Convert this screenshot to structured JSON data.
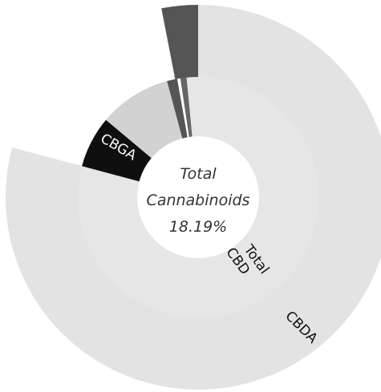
{
  "chart_data": {
    "type": "pie",
    "title": "",
    "center_label": {
      "line1": "Total",
      "line2": "Cannabinoids",
      "line3": "18.19%"
    },
    "inner_ring": [
      {
        "label": "Total CBD",
        "value": 285,
        "color": "#e6e6e6"
      },
      {
        "label": "CBGA",
        "value": 25,
        "color": "#0f0f0f"
      },
      {
        "label": "",
        "value": 35,
        "color": "#d2d2d2"
      },
      {
        "label": "",
        "value": 5,
        "color": "#555555"
      },
      {
        "label": "",
        "value": 1.5,
        "color": "#ffffff"
      },
      {
        "label": "",
        "value": 3,
        "color": "#666666"
      },
      {
        "label": "",
        "value": 5.5,
        "color": "#e6e6e6"
      }
    ],
    "outer_ring": [
      {
        "label": "CBDA",
        "value": 285,
        "color": "#e3e3e3"
      },
      {
        "label": "",
        "value": 64,
        "color": "#ffffff"
      },
      {
        "label": "",
        "value": 11,
        "color": "#555555"
      }
    ]
  }
}
